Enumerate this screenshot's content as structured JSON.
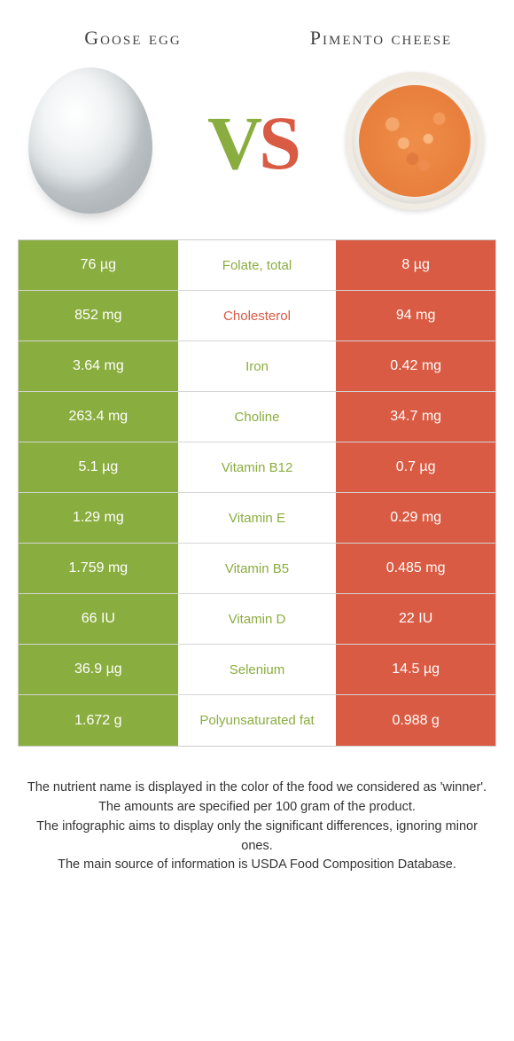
{
  "colors": {
    "green": "#8aad3f",
    "orange": "#d95b43",
    "mid_green_text": "#8aad3f",
    "mid_orange_text": "#d95b43"
  },
  "header": {
    "left": "Goose egg",
    "right": "Pimento cheese"
  },
  "vs": {
    "v": "V",
    "s": "S"
  },
  "rows": [
    {
      "left": "76 µg",
      "mid": "Folate, total",
      "right": "8 µg",
      "winner": "left"
    },
    {
      "left": "852 mg",
      "mid": "Cholesterol",
      "right": "94 mg",
      "winner": "right"
    },
    {
      "left": "3.64 mg",
      "mid": "Iron",
      "right": "0.42 mg",
      "winner": "left"
    },
    {
      "left": "263.4 mg",
      "mid": "Choline",
      "right": "34.7 mg",
      "winner": "left"
    },
    {
      "left": "5.1 µg",
      "mid": "Vitamin B12",
      "right": "0.7 µg",
      "winner": "left"
    },
    {
      "left": "1.29 mg",
      "mid": "Vitamin E",
      "right": "0.29 mg",
      "winner": "left"
    },
    {
      "left": "1.759 mg",
      "mid": "Vitamin B5",
      "right": "0.485 mg",
      "winner": "left"
    },
    {
      "left": "66 IU",
      "mid": "Vitamin D",
      "right": "22 IU",
      "winner": "left"
    },
    {
      "left": "36.9 µg",
      "mid": "Selenium",
      "right": "14.5 µg",
      "winner": "left"
    },
    {
      "left": "1.672 g",
      "mid": "Polyunsaturated fat",
      "right": "0.988 g",
      "winner": "left"
    }
  ],
  "footer": {
    "line1": "The nutrient name is displayed in the color of the food we considered as 'winner'.",
    "line2": "The amounts are specified per 100 gram of the product.",
    "line3": "The infographic aims to display only the significant differences, ignoring minor ones.",
    "line4": "The main source of information is USDA Food Composition Database."
  }
}
